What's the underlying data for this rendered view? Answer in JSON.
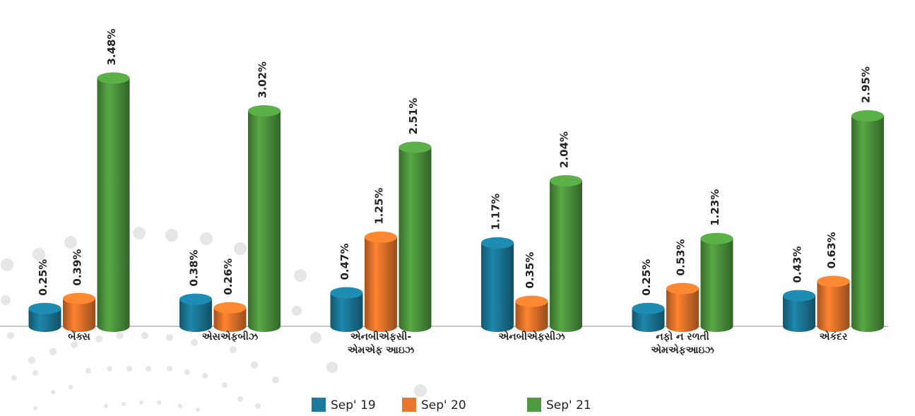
{
  "chart_data": {
    "type": "bar",
    "categories": [
      "બેંક્સ",
      "એસએફબીઝ",
      "એનબીએફસી-\nએમએફ આઇઝ",
      "એનબીએફસીઝ",
      "નફો ન રળતી\nએમએફઆઇઝ",
      "એકંદર"
    ],
    "series": [
      {
        "name": "Sep' 19",
        "color": "#1b7b9c",
        "values": [
          0.25,
          0.38,
          0.47,
          1.17,
          0.25,
          0.43
        ],
        "value_labels": [
          "0.25%",
          "0.38%",
          "0.47%",
          "1.17%",
          "0.25%",
          "0.43%"
        ]
      },
      {
        "name": "Sep' 20",
        "color": "#e8772c",
        "values": [
          0.39,
          0.26,
          1.25,
          0.35,
          0.53,
          0.63
        ],
        "value_labels": [
          "0.39%",
          "0.26%",
          "1.25%",
          "0.35%",
          "0.53%",
          "0.63%"
        ]
      },
      {
        "name": "Sep' 21",
        "color": "#4f9a3f",
        "values": [
          3.48,
          3.02,
          2.51,
          2.04,
          1.23,
          2.95
        ],
        "value_labels": [
          "3.48%",
          "3.02%",
          "2.51%",
          "2.04%",
          "1.23%",
          "2.95%"
        ]
      }
    ],
    "legend": "bottom"
  }
}
